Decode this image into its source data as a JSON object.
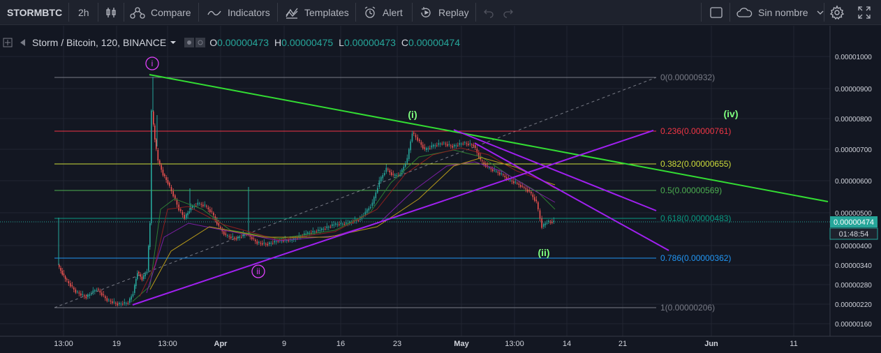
{
  "toolbar": {
    "symbol": "STORMBTC",
    "interval": "2h",
    "compare": "Compare",
    "indicators": "Indicators",
    "templates": "Templates",
    "alert": "Alert",
    "replay": "Replay",
    "layout_name": "Sin nombre"
  },
  "legend": {
    "title": "Storm / Bitcoin, 120, BINANCE",
    "o_label": "O",
    "o": "0.00000473",
    "h_label": "H",
    "h": "0.00000475",
    "l_label": "L",
    "l": "0.00000473",
    "c_label": "C",
    "c": "0.00000474"
  },
  "colors": {
    "background": "#131722",
    "grid": "#2a2e39",
    "trend_green": "#33dd33",
    "trend_purple": "#a020f0",
    "wave_magenta": "#e040fb",
    "wave_green": "#7fff7f",
    "last_price": "#26a69a"
  },
  "chart_data": {
    "type": "candlestick",
    "price_axis": [
      "0.00001000",
      "0.00000900",
      "0.00000800",
      "0.00000700",
      "0.00000600",
      "0.00000500",
      "0.00000400",
      "0.00000340",
      "0.00000280",
      "0.00000220",
      "0.00000160"
    ],
    "time_axis": [
      "13:00",
      "19",
      "13:00",
      "Apr",
      "9",
      "16",
      "23",
      "May",
      "13:00",
      "14",
      "21",
      "Jun",
      "11"
    ],
    "last_price": "0.00000474",
    "countdown": "01:48:54",
    "fib_levels": [
      {
        "label": "0(0.00000932)",
        "color": "#787b86"
      },
      {
        "label": "0.236(0.00000761)",
        "color": "#f23645"
      },
      {
        "label": "0.382(0.00000655)",
        "color": "#cddc39"
      },
      {
        "label": "0.5(0.00000569)",
        "color": "#4caf50"
      },
      {
        "label": "0.618(0.00000483)",
        "color": "#089981"
      },
      {
        "label": "0.786(0.00000362)",
        "color": "#2196f3"
      },
      {
        "label": "1(0.00000206)",
        "color": "#787b86"
      }
    ],
    "wave_labels": [
      {
        "text": "i",
        "style": "circle"
      },
      {
        "text": "ii",
        "style": "circle"
      },
      {
        "text": "(i)",
        "style": "plain"
      },
      {
        "text": "(ii)",
        "style": "plain"
      },
      {
        "text": "(iv)",
        "style": "plain"
      }
    ]
  }
}
